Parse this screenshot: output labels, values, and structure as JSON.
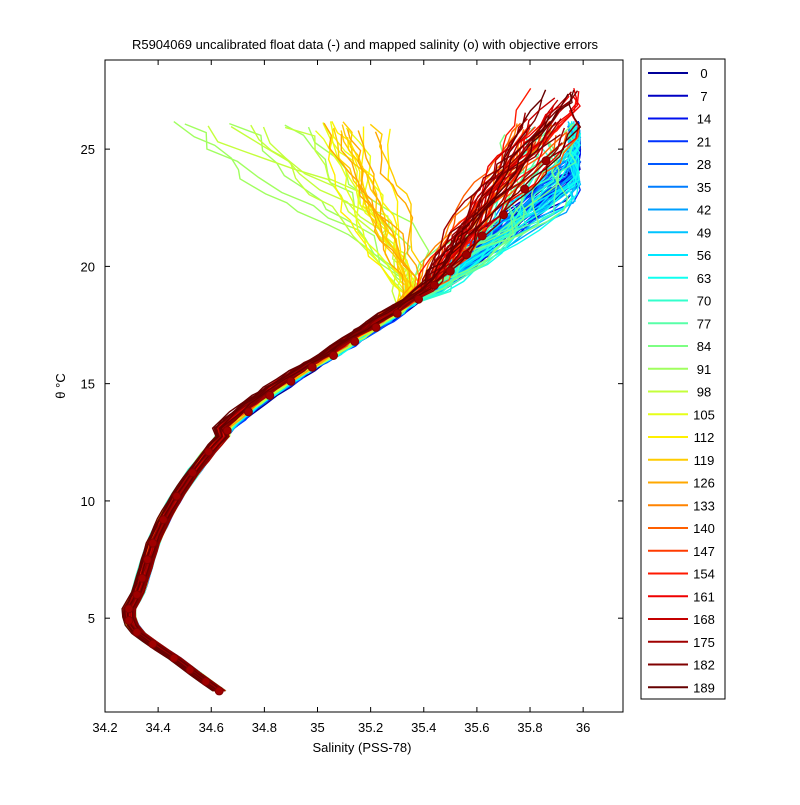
{
  "chart_data": {
    "type": "line",
    "title": "R5904069 uncalibrated float data (-) and mapped salinity (o) with objective errors",
    "xlabel": "Salinity (PSS-78)",
    "ylabel": "θ °C",
    "xlim": [
      34.2,
      36.15
    ],
    "ylim": [
      1,
      28.8
    ],
    "xticks": [
      34.2,
      34.4,
      34.6,
      34.8,
      35,
      35.2,
      35.4,
      35.6,
      35.8,
      36
    ],
    "xtick_labels": [
      "34.2",
      "34.4",
      "34.6",
      "34.8",
      "35",
      "35.2",
      "35.4",
      "35.6",
      "35.8",
      "36"
    ],
    "yticks": [
      5,
      10,
      15,
      20,
      25
    ],
    "ytick_labels": [
      "5",
      "10",
      "15",
      "20",
      "25"
    ],
    "grid": false,
    "legend_position": "outside-right",
    "legend": [
      "0",
      "7",
      "14",
      "21",
      "28",
      "35",
      "42",
      "49",
      "56",
      "63",
      "70",
      "77",
      "84",
      "91",
      "98",
      "105",
      "112",
      "119",
      "126",
      "133",
      "140",
      "147",
      "154",
      "161",
      "168",
      "175",
      "182",
      "189"
    ],
    "legend_colors": [
      "#000099",
      "#0000c4",
      "#0010ef",
      "#0033ff",
      "#0058ff",
      "#007dff",
      "#00a0ff",
      "#00c4ff",
      "#00e6ff",
      "#10fff0",
      "#33ffcc",
      "#58ffa8",
      "#7dff83",
      "#a0ff5f",
      "#c4ff3b",
      "#e6ff19",
      "#fff000",
      "#ffcc00",
      "#ffa800",
      "#ff8300",
      "#ff5f00",
      "#ff3b00",
      "#ff1900",
      "#ef0000",
      "#c40000",
      "#a00000",
      "#800000",
      "#660000"
    ],
    "mean_profile": {
      "x": [
        34.63,
        34.58,
        34.52,
        34.46,
        34.38,
        34.32,
        34.29,
        34.29,
        34.32,
        34.34,
        34.36,
        34.38,
        34.42,
        34.47,
        34.53,
        34.59,
        34.66,
        34.74,
        34.82,
        34.9,
        34.98,
        35.06,
        35.14,
        35.22,
        35.3,
        35.38,
        35.44,
        35.5,
        35.56,
        35.62,
        35.7,
        35.78,
        35.86
      ],
      "y": [
        1.9,
        2.3,
        2.8,
        3.3,
        3.9,
        4.4,
        4.9,
        5.4,
        6.0,
        6.7,
        7.5,
        8.2,
        9.2,
        10.2,
        11.2,
        12.1,
        13.0,
        13.8,
        14.5,
        15.1,
        15.7,
        16.2,
        16.8,
        17.4,
        18.0,
        18.6,
        19.2,
        19.8,
        20.5,
        21.3,
        22.2,
        23.3,
        24.5
      ]
    }
  }
}
